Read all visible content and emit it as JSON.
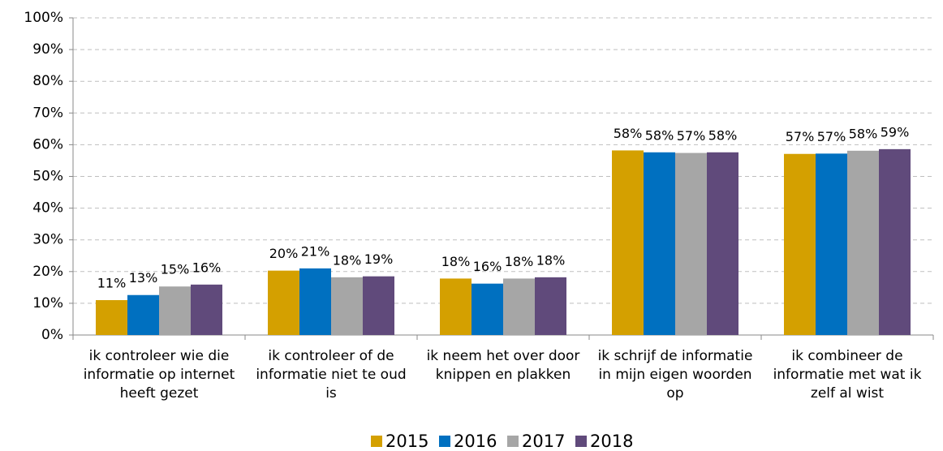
{
  "chart_data": {
    "type": "bar",
    "categories": [
      "ik controleer wie die informatie op internet heeft gezet",
      "ik controleer of de informatie niet te oud is",
      "ik neem het over door knippen en plakken",
      "ik schrijf de informatie in mijn eigen woorden op",
      "ik combineer de informatie met wat ik zelf al wist"
    ],
    "series": [
      {
        "name": "2015",
        "color": "#d4a000",
        "values": [
          11.0,
          20.3,
          17.8,
          58.2,
          57.1
        ],
        "value_labels": [
          "11%",
          "20%",
          "18%",
          "58%",
          "57%"
        ]
      },
      {
        "name": "2016",
        "color": "#0070c0",
        "values": [
          12.6,
          21.0,
          16.2,
          57.6,
          57.2
        ],
        "value_labels": [
          "13%",
          "21%",
          "16%",
          "58%",
          "57%"
        ]
      },
      {
        "name": "2017",
        "color": "#a6a6a6",
        "values": [
          15.3,
          18.2,
          17.8,
          57.4,
          58.1
        ],
        "value_labels": [
          "15%",
          "18%",
          "18%",
          "57%",
          "58%"
        ]
      },
      {
        "name": "2018",
        "color": "#604a7b",
        "values": [
          15.9,
          18.5,
          18.2,
          57.6,
          58.6
        ],
        "value_labels": [
          "16%",
          "19%",
          "18%",
          "58%",
          "59%"
        ]
      }
    ],
    "ylim": [
      0,
      100
    ],
    "yticks": [
      {
        "value": 0,
        "label": "0%"
      },
      {
        "value": 10,
        "label": "10%"
      },
      {
        "value": 20,
        "label": "20%"
      },
      {
        "value": 30,
        "label": "30%"
      },
      {
        "value": 40,
        "label": "40%"
      },
      {
        "value": 50,
        "label": "50%"
      },
      {
        "value": 60,
        "label": "60%"
      },
      {
        "value": 70,
        "label": "70%"
      },
      {
        "value": 80,
        "label": "80%"
      },
      {
        "value": 90,
        "label": "90%"
      },
      {
        "value": 100,
        "label": "100%"
      }
    ],
    "grid": true,
    "legend": "bottom"
  }
}
